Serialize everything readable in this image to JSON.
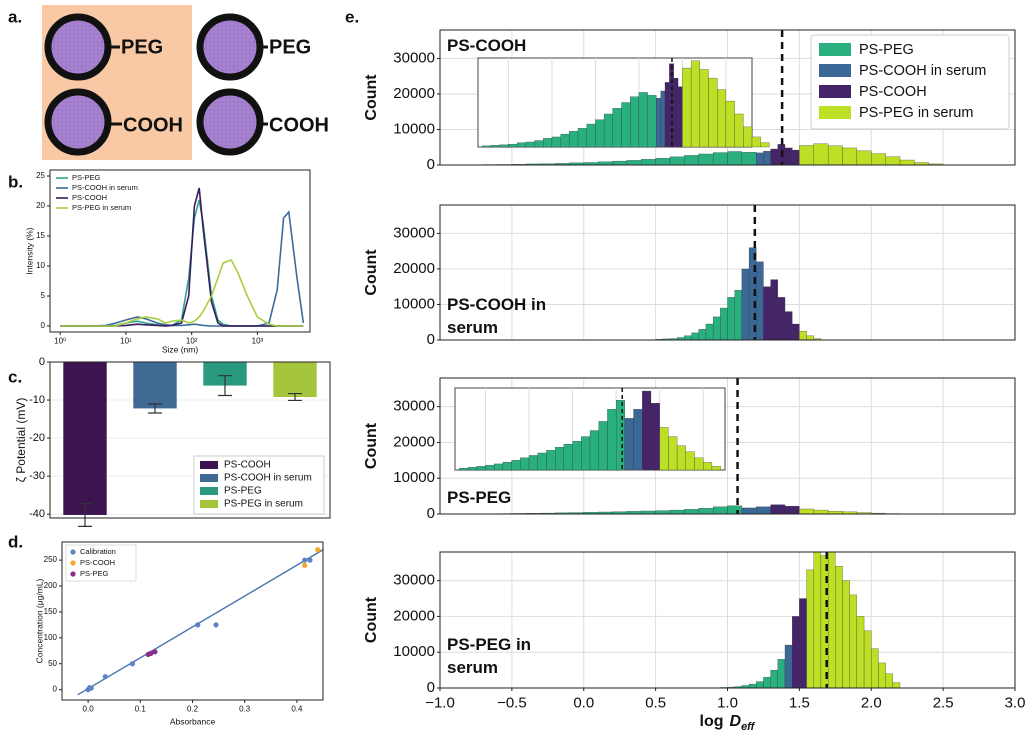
{
  "panel_a": {
    "label": "a.",
    "labels": [
      "PEG",
      "COOH",
      "PEG",
      "COOH"
    ]
  },
  "chart_data": [
    {
      "type": "line",
      "panel_label": "b.",
      "x_label": "Size (nm)",
      "y_label": "Intensity (%)",
      "xscale": "log",
      "xlim": [
        0.7,
        6300
      ],
      "xticks": [
        {
          "value": 1,
          "label": "10⁰"
        },
        {
          "value": 10,
          "label": "10¹"
        },
        {
          "value": 100,
          "label": "10²"
        },
        {
          "value": 1000,
          "label": "10³"
        }
      ],
      "ylim": [
        -1,
        26
      ],
      "yticks": [
        0,
        5,
        10,
        15,
        20,
        25
      ],
      "grid": false,
      "x": [
        1,
        2,
        3,
        5,
        7,
        10,
        15,
        20,
        30,
        40,
        50,
        70,
        90,
        110,
        130,
        150,
        200,
        250,
        300,
        400,
        500,
        700,
        1000,
        1500,
        2000,
        2500,
        3000,
        4000,
        5000
      ],
      "series": [
        {
          "name": "PS-PEG",
          "color": "#2ca58d",
          "values": [
            0,
            0,
            0,
            0,
            0.1,
            0.5,
            0.8,
            0.5,
            0.2,
            0,
            0.1,
            1,
            8,
            18,
            21,
            17,
            5,
            1,
            0.3,
            0,
            0,
            0,
            0,
            0,
            0,
            0,
            0,
            0,
            0
          ]
        },
        {
          "name": "PS-COOH in serum",
          "color": "#3d6b9a",
          "values": [
            0,
            0,
            0,
            0.1,
            0.5,
            1,
            1.5,
            1.2,
            0.5,
            0.2,
            0.1,
            0.1,
            0.2,
            0.3,
            0.2,
            0.1,
            0,
            0,
            0,
            0,
            0,
            0,
            0,
            0.5,
            6,
            18,
            19,
            8,
            0.5
          ]
        },
        {
          "name": "PS-COOH",
          "color": "#3c1a5b",
          "values": [
            0,
            0,
            0,
            0,
            0,
            0.1,
            0.3,
            0.2,
            0.1,
            0,
            0.1,
            0.5,
            5,
            20,
            23,
            16,
            4,
            0.5,
            0,
            0,
            0,
            0,
            0,
            0,
            0,
            0,
            0,
            0,
            0
          ]
        },
        {
          "name": "PS-PEG in serum",
          "color": "#a8d03e",
          "values": [
            0,
            0,
            0,
            0,
            0,
            0.5,
            1.2,
            1.5,
            1.2,
            0.5,
            0.8,
            1,
            0.5,
            0.8,
            1.5,
            2.5,
            5,
            8,
            10.5,
            11,
            9,
            5,
            1.5,
            0.3,
            0,
            0,
            0,
            0,
            0
          ]
        }
      ]
    },
    {
      "type": "bar",
      "panel_label": "c.",
      "y_label": "ζ Potential (mV)",
      "ylim": [
        -41,
        0
      ],
      "yticks": [
        0,
        -10,
        -20,
        -30,
        -40
      ],
      "grid": true,
      "categories": [
        "PS-COOH",
        "PS-COOH in serum",
        "PS-PEG",
        "PS-PEG in serum"
      ],
      "values": [
        -40.2,
        -12.2,
        -6.2,
        -9.2
      ],
      "errors": [
        3,
        1.2,
        2.6,
        0.9
      ],
      "colors": [
        "#3b1450",
        "#3e6a94",
        "#2a9a7f",
        "#a4c43c"
      ],
      "legend": "lower right"
    },
    {
      "type": "scatter",
      "panel_label": "d.",
      "x_label": "Absorbance",
      "y_label": "Concentration (μg/mL)",
      "xlim": [
        -0.05,
        0.45
      ],
      "xticks": [
        {
          "value": 0,
          "label": "0.0"
        },
        0.1,
        0.2,
        0.3,
        0.4
      ],
      "ylim": [
        -20,
        285
      ],
      "yticks": [
        0,
        50,
        100,
        150,
        200,
        250
      ],
      "grid": false,
      "legend": "upper left",
      "series": [
        {
          "name": "Calibration",
          "color": "#5b84c4",
          "x": [
            0,
            0.003,
            0.006,
            0.033,
            0.085,
            0.21,
            0.245,
            0.415,
            0.425
          ],
          "y": [
            0,
            4,
            3,
            25,
            50,
            125,
            125,
            250,
            250
          ]
        },
        {
          "name": "PS-COOH",
          "color": "#f5a623",
          "x": [
            0.415,
            0.44
          ],
          "y": [
            240,
            270
          ]
        },
        {
          "name": "PS-PEG",
          "color": "#8b2a8a",
          "x": [
            0.115,
            0.12,
            0.128
          ],
          "y": [
            68,
            70,
            73
          ]
        }
      ],
      "fit": {
        "color": "#4a72b0",
        "x": [
          -0.02,
          0.45
        ],
        "y": [
          -10,
          270
        ]
      }
    },
    {
      "type": "histogram",
      "panel_label": "e.",
      "title": "PS-COOH",
      "y_label": "Count",
      "ylim": [
        0,
        38000
      ],
      "yticks": [
        0,
        10000,
        20000,
        30000
      ],
      "grid": true,
      "vline": 1.38,
      "legend": "upper right",
      "inset": {
        "xlim": [
          -0.85,
          2.3
        ],
        "ylim": [
          0,
          6200
        ]
      },
      "series": [
        {
          "name": "PS-PEG",
          "color": "#2ab07f",
          "bins": [
            -0.8,
            -0.7,
            -0.6,
            -0.5,
            -0.4,
            -0.3,
            -0.2,
            -0.1,
            0,
            0.1,
            0.2,
            0.3,
            0.4,
            0.5,
            0.6,
            0.7,
            0.8,
            0.9,
            1,
            1.1,
            1.2
          ],
          "values": [
            80,
            120,
            150,
            200,
            300,
            350,
            450,
            600,
            700,
            900,
            1100,
            1300,
            1600,
            1900,
            2300,
            2700,
            3100,
            3500,
            3800,
            3600
          ]
        },
        {
          "name": "PS-COOH in serum",
          "color": "#3b6896",
          "bins": [
            1.2,
            1.25,
            1.3
          ],
          "values": [
            3400,
            3900
          ]
        },
        {
          "name": "PS-COOH",
          "color": "#46246a",
          "bins": [
            1.3,
            1.35,
            1.4,
            1.45,
            1.5
          ],
          "values": [
            4500,
            5800,
            4800,
            4200
          ]
        },
        {
          "name": "PS-PEG in serum",
          "color": "#bddf26",
          "bins": [
            1.5,
            1.6,
            1.7,
            1.8,
            1.9,
            2,
            2.1,
            2.2,
            2.3,
            2.4,
            2.5
          ],
          "values": [
            5500,
            6000,
            5400,
            4800,
            4000,
            3200,
            2300,
            1400,
            700,
            300
          ]
        }
      ]
    },
    {
      "type": "histogram",
      "title": "PS-COOH in serum",
      "y_label": "Count",
      "ylim": [
        0,
        38000
      ],
      "yticks": [
        0,
        10000,
        20000,
        30000
      ],
      "grid": true,
      "vline": 1.19,
      "series": [
        {
          "color": "#2ab07f",
          "bins": [
            0.5,
            0.55,
            0.6,
            0.65,
            0.7,
            0.75,
            0.8,
            0.85,
            0.9,
            0.95,
            1,
            1.05,
            1.1
          ],
          "values": [
            200,
            300,
            400,
            700,
            1200,
            2000,
            3000,
            4500,
            6500,
            9000,
            12000,
            14000
          ]
        },
        {
          "color": "#3b6896",
          "bins": [
            1.1,
            1.15,
            1.2,
            1.25
          ],
          "values": [
            20000,
            26000,
            22000
          ]
        },
        {
          "color": "#46246a",
          "bins": [
            1.25,
            1.3,
            1.35,
            1.4,
            1.45,
            1.5
          ],
          "values": [
            15000,
            17000,
            12000,
            8000,
            4500
          ]
        },
        {
          "color": "#bddf26",
          "bins": [
            1.5,
            1.55,
            1.6,
            1.65
          ],
          "values": [
            2500,
            1200,
            400
          ]
        }
      ]
    },
    {
      "type": "histogram",
      "title": "PS-PEG",
      "y_label": "Count",
      "ylim": [
        0,
        38000
      ],
      "yticks": [
        0,
        10000,
        20000,
        30000
      ],
      "grid": true,
      "vline": 1.07,
      "inset": {
        "xlim": [
          -0.85,
          2.25
        ],
        "ylim": [
          0,
          2700
        ]
      },
      "series": [
        {
          "color": "#2ab07f",
          "bins": [
            -0.8,
            -0.7,
            -0.6,
            -0.5,
            -0.4,
            -0.3,
            -0.2,
            -0.1,
            0,
            0.1,
            0.2,
            0.3,
            0.4,
            0.5,
            0.6,
            0.7,
            0.8,
            0.9,
            1,
            1.1
          ],
          "values": [
            60,
            90,
            120,
            160,
            200,
            260,
            320,
            400,
            480,
            560,
            650,
            750,
            850,
            950,
            1100,
            1300,
            1600,
            2000,
            2300
          ]
        },
        {
          "color": "#3b6896",
          "bins": [
            1.1,
            1.2,
            1.3
          ],
          "values": [
            1700,
            2000
          ]
        },
        {
          "color": "#46246a",
          "bins": [
            1.3,
            1.4,
            1.5
          ],
          "values": [
            2600,
            2200
          ]
        },
        {
          "color": "#bddf26",
          "bins": [
            1.5,
            1.6,
            1.7,
            1.8,
            1.9,
            2,
            2.1,
            2.2
          ],
          "values": [
            1400,
            1100,
            800,
            600,
            400,
            250,
            120
          ]
        }
      ]
    },
    {
      "type": "histogram",
      "title": "PS-PEG in serum",
      "y_label": "Count",
      "x_label": "log",
      "x_label_symbol": "D",
      "x_label_subscript": "eff",
      "xlim": [
        -1,
        3
      ],
      "xticks": [
        {
          "value": -1,
          "label": "−1.0"
        },
        {
          "value": -0.5,
          "label": "−0.5"
        },
        {
          "value": 0,
          "label": "0.0"
        },
        0.5,
        {
          "value": 1,
          "label": "1.0"
        },
        1.5,
        {
          "value": 2,
          "label": "2.0"
        },
        2.5,
        {
          "value": 3,
          "label": "3.0"
        }
      ],
      "ylim": [
        0,
        38000
      ],
      "yticks": [
        0,
        10000,
        20000,
        30000
      ],
      "grid": true,
      "vline": 1.69,
      "series": [
        {
          "color": "#2ab07f",
          "bins": [
            0.9,
            0.95,
            1,
            1.05,
            1.1,
            1.15,
            1.2,
            1.25,
            1.3,
            1.35,
            1.4
          ],
          "values": [
            100,
            150,
            250,
            400,
            700,
            1100,
            1800,
            3000,
            5000,
            8000
          ]
        },
        {
          "color": "#3b6896",
          "bins": [
            1.4,
            1.45
          ],
          "values": [
            12000
          ]
        },
        {
          "color": "#46246a",
          "bins": [
            1.45,
            1.5,
            1.55
          ],
          "values": [
            20000,
            25000
          ]
        },
        {
          "color": "#bddf26",
          "bins": [
            1.55,
            1.6,
            1.65,
            1.7,
            1.75,
            1.8,
            1.85,
            1.9,
            1.95,
            2,
            2.05,
            2.1,
            2.15,
            2.2
          ],
          "values": [
            33000,
            39000,
            37000,
            40000,
            34000,
            30000,
            26000,
            20000,
            16000,
            11000,
            7000,
            4000,
            1500
          ]
        }
      ]
    }
  ]
}
